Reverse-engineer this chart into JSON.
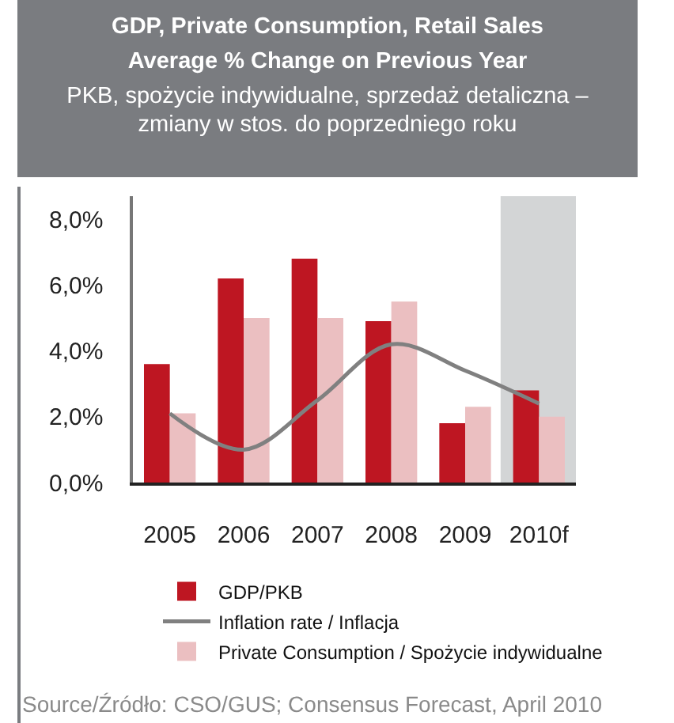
{
  "chart_data": {
    "type": "bar",
    "title": "GDP, Private Consumption, Retail Sales Average % Change on Previous Year",
    "subtitle": "PKB, spożycie indywidualne, sprzedaż detaliczna – zmiany w stos. do poprzedniego roku",
    "categories": [
      "2005",
      "2006",
      "2007",
      "2008",
      "2009",
      "2010f"
    ],
    "series": [
      {
        "name": "GDP/PKB",
        "color": "#be1622",
        "values": [
          3.6,
          6.2,
          6.8,
          4.9,
          1.8,
          2.8
        ]
      },
      {
        "name": "Private Consumption / Spożycie indywidualne",
        "color": "#ebbfc1",
        "values": [
          2.1,
          5.0,
          5.0,
          5.5,
          2.3,
          2.0
        ]
      },
      {
        "name": "Inflation rate / Inflacja",
        "type": "line",
        "color": "#808080",
        "values": [
          2.1,
          1.0,
          2.5,
          4.2,
          3.4,
          2.4
        ]
      }
    ],
    "ylim": [
      0,
      8.7
    ],
    "yticks": [
      {
        "value": 0,
        "label": "0,0%"
      },
      {
        "value": 2,
        "label": "2,0%"
      },
      {
        "value": 4,
        "label": "4,0%"
      },
      {
        "value": 6,
        "label": "6,0%"
      },
      {
        "value": 8,
        "label": "8,0%"
      }
    ],
    "bands": [
      {
        "axis": "x",
        "from": "2010f",
        "to": "2010f",
        "color": "#d3d5d6"
      }
    ],
    "grid": false,
    "legend": "bottom",
    "marker": "none",
    "line_style": "solid",
    "annotations": [
      "Source/Źródło: CSO/GUS; Consensus Forecast, April 2010"
    ]
  }
}
